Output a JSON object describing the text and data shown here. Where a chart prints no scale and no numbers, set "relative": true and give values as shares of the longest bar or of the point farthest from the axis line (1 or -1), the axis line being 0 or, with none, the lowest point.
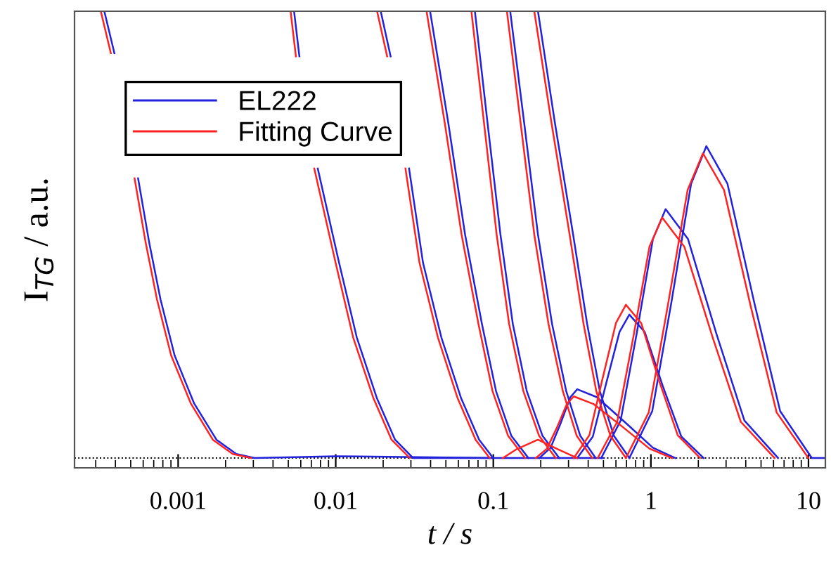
{
  "chart_data": {
    "type": "line",
    "relative": true,
    "xlabel": "t / s",
    "ylabel": "I$_{TG}$ / a.u.",
    "log": "x",
    "xlim": [
      0.00022,
      12.8
    ],
    "xticks": [
      0.001,
      0.01,
      0.1,
      1,
      10
    ],
    "legend": "top left",
    "grid": false,
    "marker": "none",
    "line_style": "solid",
    "ref_lines": [
      {
        "axis": "y",
        "value": 0,
        "line_style": "dotted",
        "color": "#000000"
      }
    ],
    "series": [
      {
        "name": "EL222",
        "color": "#2222dd",
        "x": [
          0.00034,
          0.000394,
          0.00047,
          0.000557,
          0.000656,
          0.000773,
          0.000949,
          0.00126,
          0.00175,
          0.00234,
          0.00305,
          0.01,
          0.1,
          0.5
        ],
        "values": [
          1.0,
          0.906,
          null,
          0.626,
          0.481,
          0.355,
          0.23,
          0.123,
          0.041,
          0.009,
          0,
          0.004,
          0,
          0
        ]
      },
      {
        "color": "#2222dd",
        "x": [
          0.00544,
          0.00588,
          0.0072,
          0.00769,
          0.0105,
          0.0136,
          0.0182,
          0.0238,
          0.031,
          0.1
        ],
        "values": [
          1.0,
          0.899,
          null,
          0.648,
          0.437,
          0.27,
          0.135,
          0.041,
          0,
          0
        ]
      },
      {
        "color": "#2222dd",
        "x": [
          0.0193,
          0.0223,
          0.026,
          0.0292,
          0.0358,
          0.0468,
          0.0623,
          0.0813,
          0.0998
        ],
        "values": [
          1.0,
          0.899,
          null,
          0.648,
          0.437,
          0.27,
          0.135,
          0.041,
          0
        ]
      },
      {
        "color": "#2222dd",
        "x": [
          0.0397,
          0.0518,
          0.0662,
          0.0847,
          0.104,
          0.13,
          0.167
        ],
        "values": [
          1.0,
          0.75,
          0.5,
          0.3,
          0.15,
          0.05,
          0
        ]
      },
      {
        "color": "#2222dd",
        "x": [
          0.0764,
          0.0919,
          0.111,
          0.133,
          0.163,
          0.205,
          0.262
        ],
        "values": [
          1.0,
          0.75,
          0.5,
          0.3,
          0.15,
          0.05,
          0
        ]
      },
      {
        "color": "#2222dd",
        "x": [
          0.128,
          0.157,
          0.192,
          0.236,
          0.29,
          0.356,
          0.446
        ],
        "values": [
          1.0,
          0.75,
          0.5,
          0.3,
          0.15,
          0.05,
          0
        ]
      },
      {
        "color": "#2222dd",
        "x": [
          0.192,
          0.246,
          0.321,
          0.394,
          0.474,
          0.582,
          0.73
        ],
        "values": [
          1.0,
          0.75,
          0.5,
          0.3,
          0.15,
          0.05,
          0
        ]
      },
      {
        "color": "#2222dd",
        "x": [
          0.196,
          0.231,
          0.267,
          0.308,
          0.341,
          0.455,
          0.7,
          1.03,
          1.43
        ],
        "values": [
          0,
          0.023,
          0.077,
          0.136,
          0.154,
          0.136,
          0.077,
          0.023,
          0
        ]
      },
      {
        "color": "#2222dd",
        "x": [
          0.341,
          0.428,
          0.515,
          0.632,
          0.73,
          0.914,
          1.19,
          1.56,
          2.16
        ],
        "values": [
          0,
          0.048,
          0.161,
          0.282,
          0.321,
          0.282,
          0.161,
          0.048,
          0
        ]
      },
      {
        "color": "#2222dd",
        "x": [
          0.484,
          0.643,
          0.813,
          1.03,
          1.24,
          1.72,
          2.6,
          3.92,
          6.41
        ],
        "values": [
          0,
          0.084,
          0.279,
          0.49,
          0.557,
          0.49,
          0.279,
          0.084,
          0
        ]
      },
      {
        "color": "#2222dd",
        "x": [
          0.73,
          1.02,
          1.35,
          1.8,
          2.25,
          3.06,
          4.52,
          6.61,
          10.5,
          12.5
        ],
        "values": [
          0,
          0.105,
          0.349,
          0.614,
          0.698,
          0.614,
          0.349,
          0.105,
          0,
          0
        ]
      },
      {
        "name": "Fitting Curve",
        "color": "#ff2222",
        "x": [
          0.000323,
          0.000374,
          0.000447,
          0.000529,
          0.000623,
          0.000734,
          0.000902,
          0.0012,
          0.00166,
          0.00222,
          0.0029
        ],
        "values": [
          1.0,
          0.906,
          null,
          0.626,
          0.481,
          0.355,
          0.23,
          0.123,
          0.041,
          0.009,
          0
        ]
      },
      {
        "color": "#ff2222",
        "x": [
          0.00517,
          0.00559,
          0.00684,
          0.00731,
          0.00998,
          0.0129,
          0.0173,
          0.0226,
          0.0295
        ],
        "values": [
          1.0,
          0.899,
          null,
          0.648,
          0.437,
          0.27,
          0.135,
          0.041,
          0
        ]
      },
      {
        "color": "#ff2222",
        "x": [
          0.0183,
          0.0212,
          0.0247,
          0.0277,
          0.034,
          0.0445,
          0.0592,
          0.0772,
          0.0948
        ],
        "values": [
          1.0,
          0.899,
          null,
          0.648,
          0.437,
          0.27,
          0.135,
          0.041,
          0
        ]
      },
      {
        "color": "#ff2222",
        "x": [
          0.0377,
          0.0492,
          0.0629,
          0.0805,
          0.0988,
          0.124,
          0.159
        ],
        "values": [
          1.0,
          0.75,
          0.5,
          0.3,
          0.15,
          0.05,
          0
        ]
      },
      {
        "color": "#ff2222",
        "x": [
          0.0726,
          0.0873,
          0.105,
          0.126,
          0.155,
          0.195,
          0.249
        ],
        "values": [
          1.0,
          0.75,
          0.5,
          0.3,
          0.15,
          0.05,
          0
        ]
      },
      {
        "color": "#ff2222",
        "x": [
          0.122,
          0.149,
          0.182,
          0.224,
          0.276,
          0.338,
          0.424
        ],
        "values": [
          1.0,
          0.75,
          0.5,
          0.3,
          0.15,
          0.05,
          0
        ]
      },
      {
        "color": "#ff2222",
        "x": [
          0.182,
          0.234,
          0.305,
          0.374,
          0.45,
          0.553,
          0.694
        ],
        "values": [
          1.0,
          0.75,
          0.5,
          0.3,
          0.15,
          0.05,
          0
        ]
      },
      {
        "color": "#ff2222",
        "x": [
          0.115,
          0.141,
          0.192,
          0.256,
          0.341
        ],
        "values": [
          0,
          0.02,
          0.041,
          0.02,
          0
        ]
      },
      {
        "color": "#ff2222",
        "x": [
          0.186,
          0.219,
          0.254,
          0.293,
          0.324,
          0.432,
          0.665,
          0.979,
          1.36
        ],
        "values": [
          0,
          0.021,
          0.069,
          0.121,
          0.138,
          0.121,
          0.069,
          0.021,
          0
        ]
      },
      {
        "color": "#ff2222",
        "x": [
          0.324,
          0.407,
          0.489,
          0.6,
          0.694,
          0.868,
          1.13,
          1.48,
          2.05
        ],
        "values": [
          0,
          0.051,
          0.172,
          0.302,
          0.343,
          0.302,
          0.172,
          0.051,
          0
        ]
      },
      {
        "color": "#ff2222",
        "x": [
          0.46,
          0.611,
          0.772,
          0.979,
          1.18,
          1.63,
          2.47,
          3.72,
          6.09
        ],
        "values": [
          0,
          0.081,
          0.269,
          0.473,
          0.538,
          0.473,
          0.269,
          0.081,
          0
        ]
      },
      {
        "color": "#ff2222",
        "x": [
          0.694,
          0.969,
          1.28,
          1.71,
          2.14,
          2.91,
          4.29,
          6.28,
          9.98
        ],
        "values": [
          0,
          0.102,
          0.341,
          0.6,
          0.682,
          0.6,
          0.341,
          0.102,
          0
        ]
      }
    ]
  }
}
